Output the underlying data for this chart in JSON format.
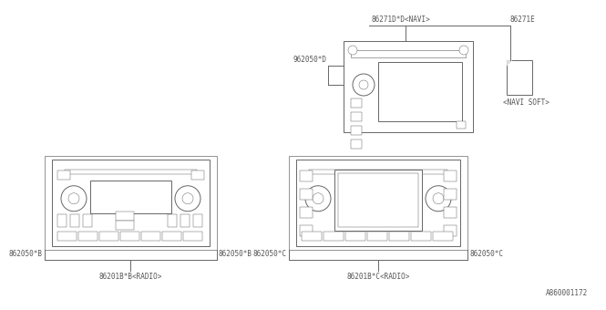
{
  "bg_color": "#ffffff",
  "line_color": "#666666",
  "text_color": "#555555",
  "font_size": 5.5,
  "diagram_title": "A860001172",
  "top_unit_label_top": "86271D*D<NAVI>",
  "top_unit_label_left": "962050*D",
  "top_unit_label_right": "86271E",
  "top_unit_label_right2": "<NAVI SOFT>",
  "bl_label_left": "862050*B",
  "bl_label_right": "862050*B",
  "bl_label_bottom": "86201B*B<RADIO>",
  "br_label_left": "862050*C",
  "br_label_right": "862050*C",
  "br_label_bottom": "86201B*C<RADIO>"
}
